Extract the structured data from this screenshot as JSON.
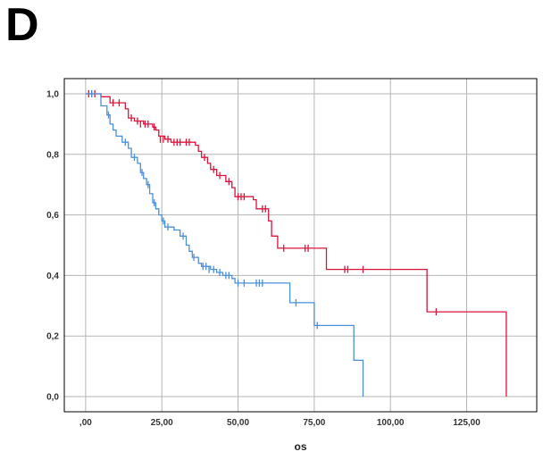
{
  "panel_label": "D",
  "chart_data": {
    "type": "line",
    "subtype": "kaplan-meier survival",
    "title": "",
    "xlabel": "os",
    "ylabel": "",
    "xlim": [
      -7,
      148
    ],
    "ylim": [
      -0.05,
      1.05
    ],
    "x_ticks": [
      {
        "value": 0,
        "label": ",00"
      },
      {
        "value": 25,
        "label": "25,00"
      },
      {
        "value": 50,
        "label": "50,00"
      },
      {
        "value": 75,
        "label": "75,00"
      },
      {
        "value": 100,
        "label": "100,00"
      },
      {
        "value": 125,
        "label": "125,00"
      }
    ],
    "y_ticks": [
      {
        "value": 0.0,
        "label": "0,0"
      },
      {
        "value": 0.2,
        "label": "0,2"
      },
      {
        "value": 0.4,
        "label": "0,4"
      },
      {
        "value": 0.6,
        "label": "0,6"
      },
      {
        "value": 0.8,
        "label": "0,8"
      },
      {
        "value": 1.0,
        "label": "1,0"
      }
    ],
    "grid": true,
    "legend": "none",
    "series": [
      {
        "color": "#dc143c",
        "steps": [
          [
            0,
            1.0
          ],
          [
            5,
            0.99
          ],
          [
            8,
            0.97
          ],
          [
            13,
            0.95
          ],
          [
            14,
            0.92
          ],
          [
            16,
            0.91
          ],
          [
            19,
            0.9
          ],
          [
            22,
            0.89
          ],
          [
            23,
            0.88
          ],
          [
            24,
            0.86
          ],
          [
            26,
            0.85
          ],
          [
            28,
            0.84
          ],
          [
            36,
            0.83
          ],
          [
            37,
            0.81
          ],
          [
            38,
            0.79
          ],
          [
            40,
            0.77
          ],
          [
            41,
            0.75
          ],
          [
            43,
            0.73
          ],
          [
            46,
            0.71
          ],
          [
            48,
            0.69
          ],
          [
            49,
            0.66
          ],
          [
            55,
            0.65
          ],
          [
            56,
            0.62
          ],
          [
            60,
            0.58
          ],
          [
            61,
            0.53
          ],
          [
            63,
            0.49
          ],
          [
            79,
            0.42
          ],
          [
            112,
            0.28
          ],
          [
            138,
            0.0
          ]
        ],
        "censored": [
          [
            1,
            1.0
          ],
          [
            2,
            1.0
          ],
          [
            3,
            1.0
          ],
          [
            9,
            0.97
          ],
          [
            11,
            0.97
          ],
          [
            15,
            0.92
          ],
          [
            17,
            0.91
          ],
          [
            18,
            0.9
          ],
          [
            19.5,
            0.9
          ],
          [
            20.5,
            0.9
          ],
          [
            22.5,
            0.89
          ],
          [
            24.5,
            0.85
          ],
          [
            25.5,
            0.85
          ],
          [
            27,
            0.85
          ],
          [
            29,
            0.84
          ],
          [
            30,
            0.84
          ],
          [
            31,
            0.84
          ],
          [
            33,
            0.84
          ],
          [
            34,
            0.84
          ],
          [
            39,
            0.79
          ],
          [
            42,
            0.75
          ],
          [
            44,
            0.73
          ],
          [
            47,
            0.71
          ],
          [
            50,
            0.66
          ],
          [
            51,
            0.66
          ],
          [
            52,
            0.66
          ],
          [
            58,
            0.62
          ],
          [
            59,
            0.62
          ],
          [
            65,
            0.49
          ],
          [
            72,
            0.49
          ],
          [
            73,
            0.49
          ],
          [
            85,
            0.42
          ],
          [
            86,
            0.42
          ],
          [
            91,
            0.42
          ],
          [
            115,
            0.28
          ]
        ],
        "end_x": 138
      },
      {
        "color": "#4a90d9",
        "steps": [
          [
            0,
            1.0
          ],
          [
            5,
            0.96
          ],
          [
            7,
            0.93
          ],
          [
            8,
            0.9
          ],
          [
            9,
            0.88
          ],
          [
            10,
            0.86
          ],
          [
            12,
            0.84
          ],
          [
            14,
            0.82
          ],
          [
            15,
            0.79
          ],
          [
            17,
            0.77
          ],
          [
            18,
            0.74
          ],
          [
            19,
            0.72
          ],
          [
            20,
            0.7
          ],
          [
            21,
            0.67
          ],
          [
            22,
            0.64
          ],
          [
            23,
            0.62
          ],
          [
            24,
            0.6
          ],
          [
            25,
            0.58
          ],
          [
            26,
            0.56
          ],
          [
            29,
            0.55
          ],
          [
            31,
            0.53
          ],
          [
            33,
            0.5
          ],
          [
            34,
            0.48
          ],
          [
            35,
            0.46
          ],
          [
            37,
            0.44
          ],
          [
            38,
            0.43
          ],
          [
            41,
            0.42
          ],
          [
            43,
            0.41
          ],
          [
            45,
            0.4
          ],
          [
            48,
            0.39
          ],
          [
            49,
            0.375
          ],
          [
            67,
            0.31
          ],
          [
            75,
            0.235
          ],
          [
            88,
            0.12
          ],
          [
            91,
            0.0
          ]
        ],
        "censored": [
          [
            2,
            1.0
          ],
          [
            7.5,
            0.93
          ],
          [
            13,
            0.84
          ],
          [
            16,
            0.79
          ],
          [
            18.5,
            0.74
          ],
          [
            20.5,
            0.7
          ],
          [
            22.5,
            0.64
          ],
          [
            25.5,
            0.58
          ],
          [
            27,
            0.56
          ],
          [
            32,
            0.53
          ],
          [
            35.5,
            0.46
          ],
          [
            38.5,
            0.43
          ],
          [
            39.5,
            0.43
          ],
          [
            40.5,
            0.42
          ],
          [
            42,
            0.42
          ],
          [
            44,
            0.41
          ],
          [
            46,
            0.4
          ],
          [
            47,
            0.4
          ],
          [
            50,
            0.375
          ],
          [
            52,
            0.375
          ],
          [
            56,
            0.375
          ],
          [
            57,
            0.375
          ],
          [
            58,
            0.375
          ],
          [
            69,
            0.31
          ],
          [
            76,
            0.235
          ]
        ],
        "end_x": 91
      }
    ]
  }
}
